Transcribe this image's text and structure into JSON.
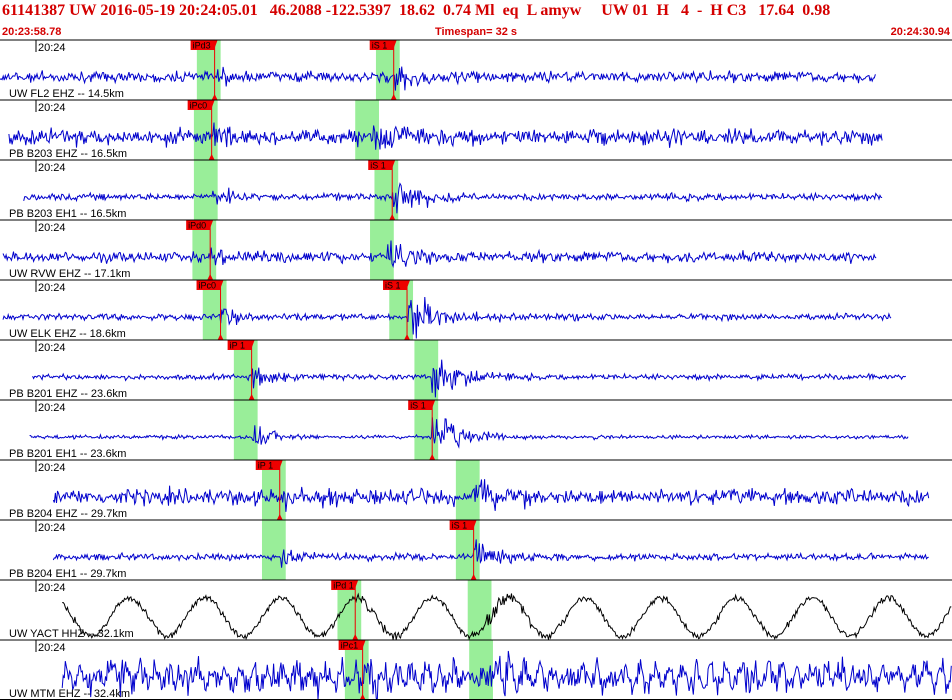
{
  "header": {
    "title": "61141387 UW 2016-05-19 20:24:05.01   46.2088 -122.5397  18.62  0.74 Ml  eq  L amyw     UW 01  H   4  -  H C3   17.64  0.98",
    "start_time": "20:23:58.78",
    "timespan": "Timespan=  32 s",
    "end_time": "20:24:30.94"
  },
  "colors": {
    "title": "#d40000",
    "trace": "#0000cc",
    "trace_alt": "#000000",
    "pick": "#ee0000",
    "window": "#99ee99",
    "axis": "#000000"
  },
  "chart_data": {
    "type": "line",
    "x_unit": "seconds after 20:23:58.78",
    "x_range": [
      0,
      32.16
    ],
    "traces": [
      {
        "label": "UW FL2 EHZ -- 14.5km",
        "time_label": "20:24",
        "color": "blue",
        "p_pick": "iPd3",
        "p_time": 7.25,
        "s_pick": "iS 1",
        "s_time": 13.3,
        "start": 0.0,
        "end": 29.6,
        "amp": 0.08,
        "burst": 0.6,
        "noise": "normal"
      },
      {
        "label": "PB B203 EHZ -- 16.5km",
        "time_label": "20:24",
        "color": "blue",
        "p_pick": "iPc0",
        "p_time": 7.15,
        "s_pick": "",
        "s_time": 12.6,
        "start": 0.3,
        "end": 29.8,
        "amp": 0.12,
        "burst": 0.75,
        "noise": "normal"
      },
      {
        "label": "PB B203 EH1 -- 16.5km",
        "time_label": "20:24",
        "color": "blue",
        "p_pick": "",
        "p_time": 7.15,
        "s_pick": "iS 1",
        "s_time": 13.25,
        "start": 0.8,
        "end": 29.8,
        "amp": 0.05,
        "burst": 0.85,
        "noise": "normal"
      },
      {
        "label": "UW RVW EHZ -- 17.1km",
        "time_label": "20:24",
        "color": "blue",
        "p_pick": "iPd0",
        "p_time": 7.1,
        "s_pick": "",
        "s_time": 13.1,
        "start": 0.1,
        "end": 29.6,
        "amp": 0.08,
        "burst": 0.6,
        "noise": "normal"
      },
      {
        "label": "UW ELK EHZ -- 18.6km",
        "time_label": "20:24",
        "color": "blue",
        "p_pick": "iPc0",
        "p_time": 7.45,
        "s_pick": "iS 1",
        "s_time": 13.75,
        "start": 0.1,
        "end": 30.1,
        "amp": 0.05,
        "burst": 0.8,
        "noise": "normal"
      },
      {
        "label": "PB B201 EHZ -- 23.6km",
        "time_label": "20:24",
        "color": "blue",
        "p_pick": "iP 1",
        "p_time": 8.5,
        "s_pick": "",
        "s_time": 14.6,
        "start": 1.1,
        "end": 30.6,
        "amp": 0.04,
        "burst": 0.8,
        "noise": "normal"
      },
      {
        "label": "PB B201 EH1 -- 23.6km",
        "time_label": "20:24",
        "color": "blue",
        "p_pick": "",
        "p_time": 8.5,
        "s_pick": "iS 1",
        "s_time": 14.6,
        "start": 1.0,
        "end": 30.7,
        "amp": 0.03,
        "burst": 0.85,
        "noise": "normal"
      },
      {
        "label": "PB B204 EHZ -- 29.7km",
        "time_label": "20:24",
        "color": "blue",
        "p_pick": "iP 1",
        "p_time": 9.45,
        "s_pick": "",
        "s_time": 16.0,
        "start": 1.8,
        "end": 31.4,
        "amp": 0.12,
        "burst": 0.75,
        "noise": "normal"
      },
      {
        "label": "PB B204 EH1 -- 29.7km",
        "time_label": "20:24",
        "color": "blue",
        "p_pick": "",
        "p_time": 9.45,
        "s_pick": "iS 1",
        "s_time": 16.0,
        "start": 1.8,
        "end": 31.4,
        "amp": 0.05,
        "burst": 0.8,
        "noise": "normal"
      },
      {
        "label": "UW YACT HHZ -- 32.1km",
        "time_label": "20:24",
        "color": "black",
        "p_pick": "iPd 1",
        "p_time": 12.0,
        "s_pick": "",
        "s_time": 16.4,
        "start": 2.1,
        "end": 32.16,
        "amp": 0.1,
        "burst": 0.5,
        "noise": "swell"
      },
      {
        "label": "UW MTM EHZ -- 32.4km",
        "time_label": "20:24",
        "color": "blue",
        "p_pick": "iPc1",
        "p_time": 12.25,
        "s_pick": "",
        "s_time": 16.45,
        "start": 2.1,
        "end": 32.16,
        "amp": 0.22,
        "burst": 0.6,
        "noise": "rough"
      }
    ]
  }
}
